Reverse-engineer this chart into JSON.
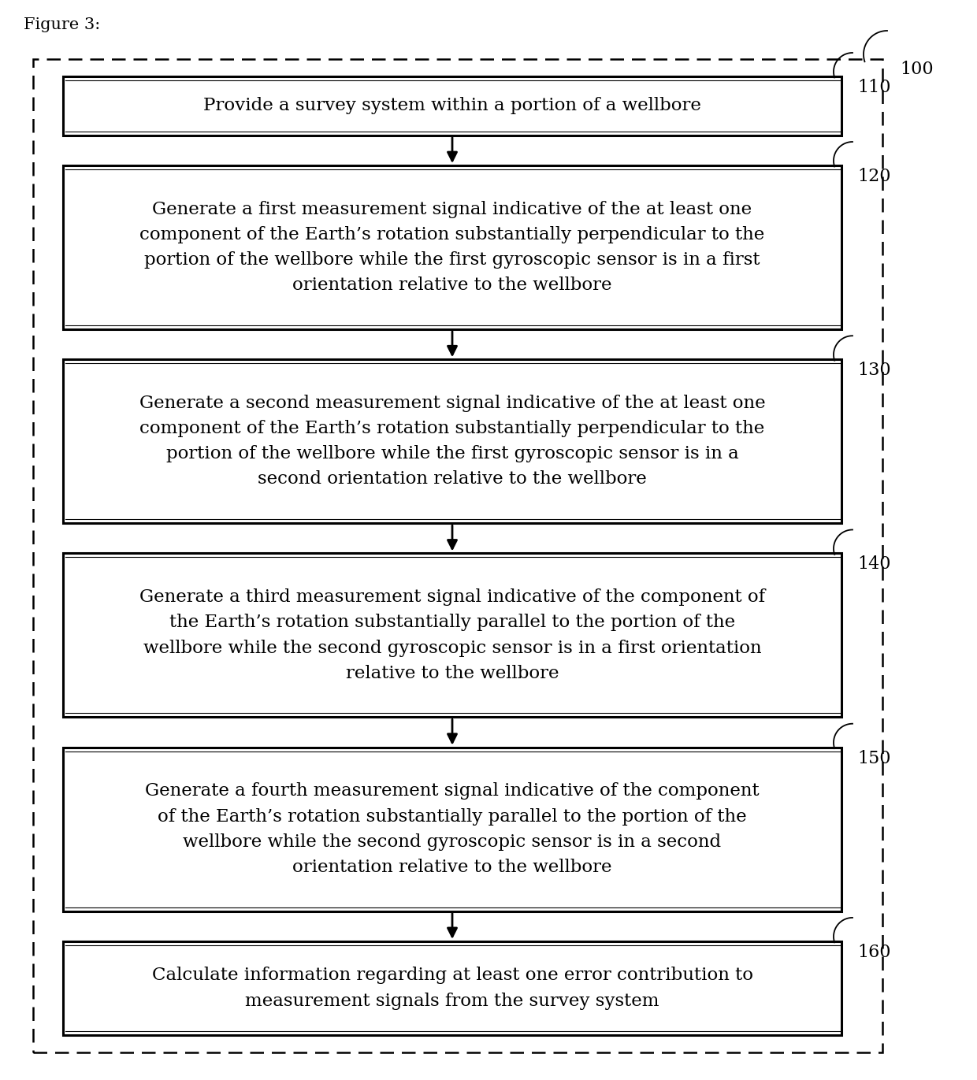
{
  "figure_label": "Figure 3:",
  "background_color": "#ffffff",
  "outer_box_label": "100",
  "boxes": [
    {
      "id": "110",
      "label": "110",
      "lines": [
        "Provide a survey system within a portion of a wellbore"
      ]
    },
    {
      "id": "120",
      "label": "120",
      "lines": [
        "Generate a first measurement signal indicative of the at least one",
        "component of the Earth’s rotation substantially perpendicular to the",
        "portion of the wellbore while the first gyroscopic sensor is in a first",
        "orientation relative to the wellbore"
      ]
    },
    {
      "id": "130",
      "label": "130",
      "lines": [
        "Generate a second measurement signal indicative of the at least one",
        "component of the Earth’s rotation substantially perpendicular to the",
        "portion of the wellbore while the first gyroscopic sensor is in a",
        "second orientation relative to the wellbore"
      ]
    },
    {
      "id": "140",
      "label": "140",
      "lines": [
        "Generate a third measurement signal indicative of the component of",
        "the Earth’s rotation substantially parallel to the portion of the",
        "wellbore while the second gyroscopic sensor is in a first orientation",
        "relative to the wellbore"
      ]
    },
    {
      "id": "150",
      "label": "150",
      "lines": [
        "Generate a fourth measurement signal indicative of the component",
        "of the Earth’s rotation substantially parallel to the portion of the",
        "wellbore while the second gyroscopic sensor is in a second",
        "orientation relative to the wellbore"
      ]
    },
    {
      "id": "160",
      "label": "160",
      "lines": [
        "Calculate information regarding at least one error contribution to",
        "measurement signals from the survey system"
      ]
    }
  ],
  "box_color": "#000000",
  "box_fill": "#ffffff",
  "label_color": "#000000",
  "arrow_color": "#000000",
  "dashed_border_color": "#000000",
  "font_size_text": 16.5,
  "font_size_label": 16,
  "font_size_title": 15
}
